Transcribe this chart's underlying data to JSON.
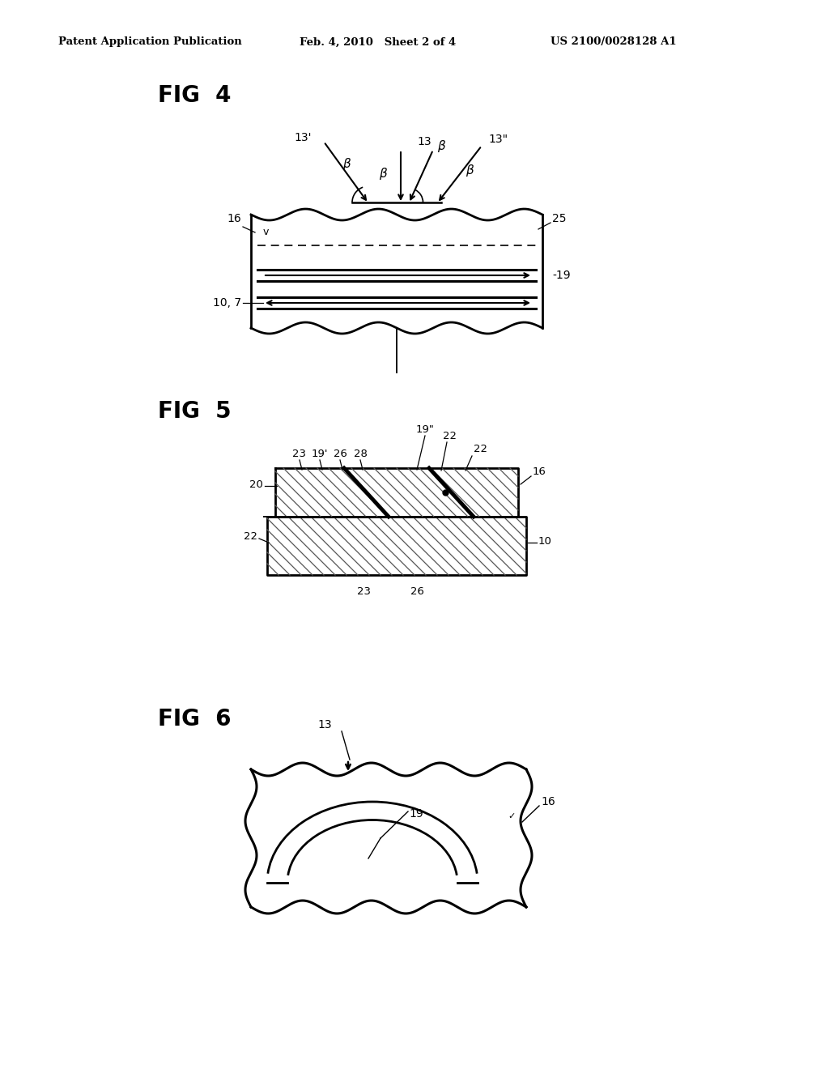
{
  "header_left": "Patent Application Publication",
  "header_mid": "Feb. 4, 2010   Sheet 2 of 4",
  "header_right": "US 2100/0028128 A1",
  "bg_color": "#ffffff",
  "line_color": "#000000",
  "fig4_label": "FIG  4",
  "fig5_label": "FIG  5",
  "fig6_label": "FIG  6"
}
